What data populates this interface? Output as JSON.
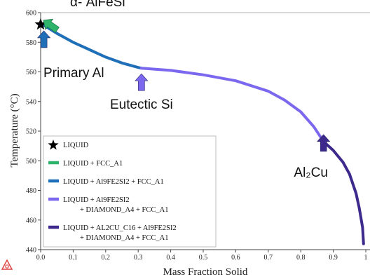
{
  "chart_data": {
    "type": "line",
    "xlabel": "Mass Fraction Solid",
    "ylabel": "Temperature (°C)",
    "xlim": [
      0,
      1
    ],
    "ylim": [
      440,
      600
    ],
    "xticks": [
      0.0,
      0.1,
      0.2,
      0.3,
      0.4,
      0.5,
      0.6,
      0.7,
      0.8,
      0.9,
      1.0
    ],
    "xtick_labels": [
      "0.0",
      "0.1",
      "0.2",
      "0.3",
      "0.4",
      "0.5",
      "0.6",
      "0.7",
      "0.8",
      "0.9",
      "1"
    ],
    "yticks": [
      440,
      460,
      480,
      500,
      520,
      540,
      560,
      580,
      600
    ],
    "ytick_labels": [
      "440",
      "460",
      "480",
      "500",
      "520",
      "540",
      "560",
      "580",
      "600"
    ],
    "grid": false,
    "legend_position": "bottom-left",
    "series": [
      {
        "name": "LIQUID",
        "marker": "star",
        "color": "#000000",
        "x": [
          0.0
        ],
        "y": [
          592
        ]
      },
      {
        "name": "LIQUID + FCC_A1",
        "color": "#2db46a",
        "x": [
          0.0,
          0.01
        ],
        "y": [
          592,
          591.5
        ]
      },
      {
        "name": "LIQUID + Al9FE2SI2 + FCC_A1",
        "color": "#1f6fb8",
        "x": [
          0.01,
          0.05,
          0.1,
          0.15,
          0.2,
          0.25,
          0.3,
          0.31
        ],
        "y": [
          591.5,
          586,
          580,
          575,
          570,
          566,
          563,
          562.5
        ]
      },
      {
        "name": "LIQUID + Al9FE2SI2 + DIAMOND_A4 + FCC_A1",
        "color": "#7b68ee",
        "x": [
          0.31,
          0.4,
          0.5,
          0.6,
          0.7,
          0.75,
          0.8,
          0.84,
          0.87
        ],
        "y": [
          562.5,
          561,
          558,
          554,
          547,
          541,
          533,
          523,
          513
        ]
      },
      {
        "name": "LIQUID + AL2CU_C16 + Al9FE2SI2 + DIAMOND_A4 + FCC_A1",
        "color": "#3e2a8c",
        "x": [
          0.87,
          0.9,
          0.93,
          0.95,
          0.97,
          0.98,
          0.99,
          0.993
        ],
        "y": [
          513,
          507,
          499,
          491,
          478,
          468,
          455,
          444
        ]
      }
    ],
    "annotations": [
      {
        "text": "α- AlFeSi",
        "x": 0.0,
        "y": 592,
        "arrow_color": "#2db46a"
      },
      {
        "text": "Primary Al",
        "x": 0.01,
        "y": 591.5,
        "arrow_color": "#1f6fb8"
      },
      {
        "text": "Eutectic Si",
        "x": 0.31,
        "y": 562.5,
        "arrow_color": "#7b68ee"
      },
      {
        "text": "Al₂Cu",
        "x": 0.87,
        "y": 513,
        "arrow_color": "#3e2a8c"
      }
    ],
    "legend": {
      "entries": [
        {
          "label_lines": [
            "LIQUID"
          ],
          "marker": "star",
          "color": "#000000"
        },
        {
          "label_lines": [
            "LIQUID + FCC_A1"
          ],
          "color": "#2db46a"
        },
        {
          "label_lines": [
            "LIQUID + Al9FE2SI2 + FCC_A1"
          ],
          "color": "#1f6fb8"
        },
        {
          "label_lines": [
            "LIQUID + Al9FE2SI2",
            "+ DIAMOND_A4 + FCC_A1"
          ],
          "color": "#7b68ee"
        },
        {
          "label_lines": [
            "LIQUID + AL2CU_C16 + Al9FE2SI2",
            "+ DIAMOND_A4 + FCC_A1"
          ],
          "color": "#3e2a8c"
        }
      ]
    }
  }
}
